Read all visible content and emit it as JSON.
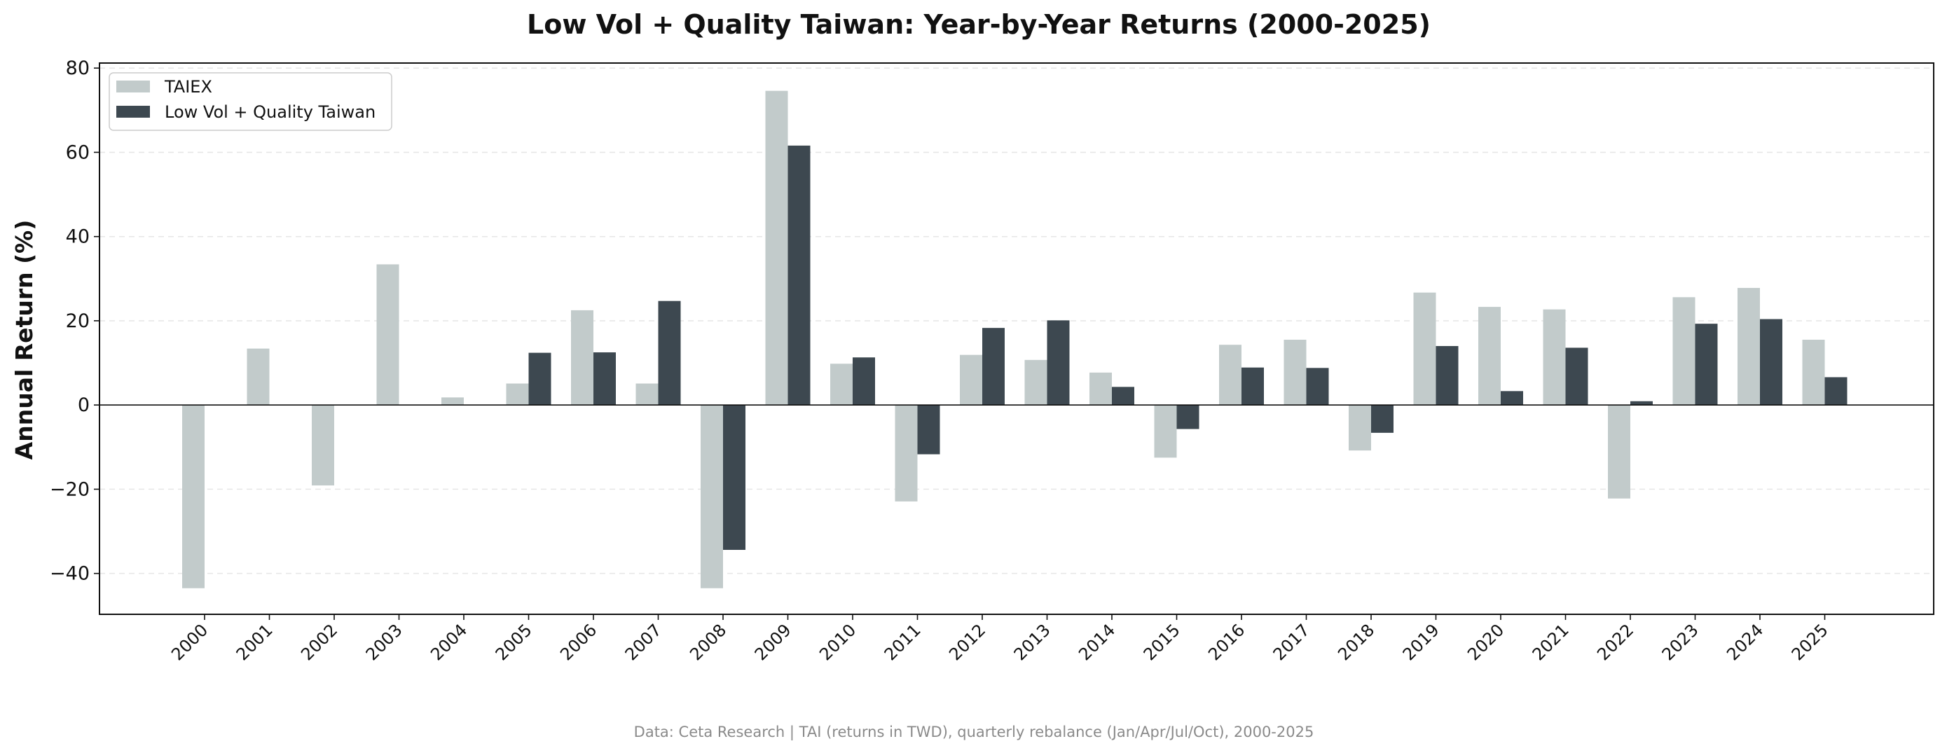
{
  "chart_data": {
    "type": "bar",
    "title": "Low Vol + Quality Taiwan: Year-by-Year Returns (2000-2025)",
    "xlabel": "",
    "ylabel": "Annual Return (%)",
    "ylim": [
      -49.7,
      81.2
    ],
    "yticks": [
      -40,
      -20,
      0,
      20,
      40,
      60,
      80
    ],
    "ytick_labels": [
      "−40",
      "−20",
      "0",
      "20",
      "40",
      "60",
      "80"
    ],
    "grid": "y dashed",
    "legend_position": "top-left",
    "categories": [
      "2000",
      "2001",
      "2002",
      "2003",
      "2004",
      "2005",
      "2006",
      "2007",
      "2008",
      "2009",
      "2010",
      "2011",
      "2012",
      "2013",
      "2014",
      "2015",
      "2016",
      "2017",
      "2018",
      "2019",
      "2020",
      "2021",
      "2022",
      "2023",
      "2024",
      "2025"
    ],
    "series": [
      {
        "name": "TAIEX",
        "color": "#c2cbcb",
        "values": [
          -43.5,
          13.4,
          -19.1,
          33.4,
          1.8,
          5.1,
          22.5,
          5.1,
          -43.5,
          74.6,
          9.8,
          -22.9,
          11.9,
          10.7,
          7.7,
          -12.5,
          14.3,
          15.5,
          -10.8,
          26.7,
          23.3,
          22.7,
          -22.2,
          25.6,
          27.8,
          15.5
        ]
      },
      {
        "name": "Low Vol + Quality Taiwan",
        "color": "#3d4850",
        "values": [
          0,
          0,
          0,
          0,
          0,
          12.4,
          12.5,
          24.7,
          -34.4,
          61.6,
          11.3,
          -11.7,
          18.3,
          20.1,
          4.3,
          -5.7,
          8.9,
          8.8,
          -6.6,
          14.0,
          3.3,
          13.6,
          0.9,
          19.3,
          20.4,
          6.6
        ]
      }
    ],
    "footnote": "Data: Ceta Research | TAI (returns in TWD), quarterly rebalance (Jan/Apr/Jul/Oct), 2000-2025"
  }
}
